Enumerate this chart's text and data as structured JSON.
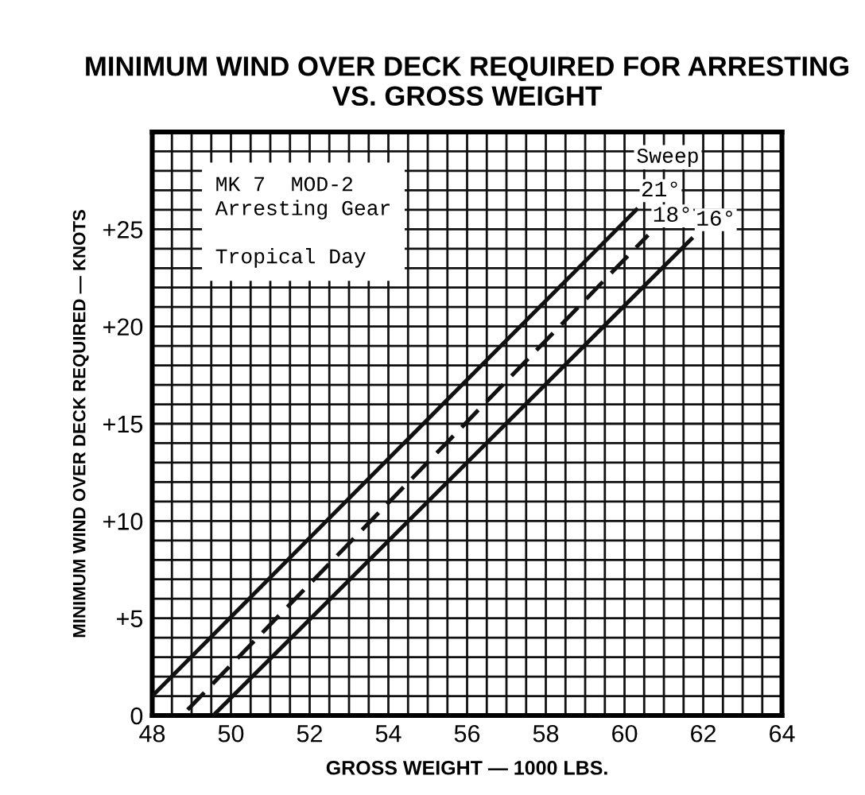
{
  "chart_data": {
    "type": "line",
    "title": "MINIMUM WIND OVER DECK REQUIRED FOR ARRESTING\nVS. GROSS WEIGHT",
    "xlabel": "GROSS WEIGHT — 1000 LBS.",
    "ylabel": "MINIMUM WIND OVER DECK REQUIRED — KNOTS",
    "series": [
      {
        "name": "21°",
        "color": "#111111",
        "line_style": "solid",
        "x": [
          48,
          60.3
        ],
        "values": [
          1,
          26
        ]
      },
      {
        "name": "18°",
        "color": "#111111",
        "line_style": "dashed",
        "x": [
          48.9,
          60.6
        ],
        "values": [
          0.3,
          24.7
        ]
      },
      {
        "name": "16°",
        "color": "#111111",
        "line_style": "solid",
        "x": [
          49.6,
          61.7
        ],
        "values": [
          0.1,
          24.5
        ]
      }
    ],
    "annotations": [
      "MK 7  MOD-2\nArresting Gear\n\nTropical Day",
      {
        "text": "Sweep",
        "x": 61.1,
        "y": 28.7
      }
    ],
    "xlim": [
      48,
      64
    ],
    "ylim": [
      0,
      30
    ],
    "xticks": [
      48,
      {
        "value": 48.5,
        "label": null
      },
      {
        "value": 49,
        "label": null
      },
      {
        "value": 49.5,
        "label": null
      },
      50,
      {
        "value": 50.5,
        "label": null
      },
      {
        "value": 51,
        "label": null
      },
      {
        "value": 51.5,
        "label": null
      },
      52,
      {
        "value": 52.5,
        "label": null
      },
      {
        "value": 53,
        "label": null
      },
      {
        "value": 53.5,
        "label": null
      },
      54,
      {
        "value": 54.5,
        "label": null
      },
      {
        "value": 55,
        "label": null
      },
      {
        "value": 55.5,
        "label": null
      },
      56,
      {
        "value": 56.5,
        "label": null
      },
      {
        "value": 57,
        "label": null
      },
      {
        "value": 57.5,
        "label": null
      },
      58,
      {
        "value": 58.5,
        "label": null
      },
      {
        "value": 59,
        "label": null
      },
      {
        "value": 59.5,
        "label": null
      },
      60,
      {
        "value": 60.5,
        "label": null
      },
      {
        "value": 61,
        "label": null
      },
      {
        "value": 61.5,
        "label": null
      },
      62,
      {
        "value": 62.5,
        "label": null
      },
      {
        "value": 63,
        "label": null
      },
      {
        "value": 63.5,
        "label": null
      },
      64
    ],
    "yticks": [
      0,
      {
        "value": 1,
        "label": null
      },
      {
        "value": 2,
        "label": null
      },
      {
        "value": 3,
        "label": null
      },
      {
        "value": 4,
        "label": null
      },
      {
        "value": 5,
        "label": "+5"
      },
      {
        "value": 6,
        "label": null
      },
      {
        "value": 7,
        "label": null
      },
      {
        "value": 8,
        "label": null
      },
      {
        "value": 9,
        "label": null
      },
      {
        "value": 10,
        "label": "+10"
      },
      {
        "value": 11,
        "label": null
      },
      {
        "value": 12,
        "label": null
      },
      {
        "value": 13,
        "label": null
      },
      {
        "value": 14,
        "label": null
      },
      {
        "value": 15,
        "label": "+15"
      },
      {
        "value": 16,
        "label": null
      },
      {
        "value": 17,
        "label": null
      },
      {
        "value": 18,
        "label": null
      },
      {
        "value": 19,
        "label": null
      },
      {
        "value": 20,
        "label": "+20"
      },
      {
        "value": 21,
        "label": null
      },
      {
        "value": 22,
        "label": null
      },
      {
        "value": 23,
        "label": null
      },
      {
        "value": 24,
        "label": null
      },
      {
        "value": 25,
        "label": "+25"
      },
      {
        "value": 26,
        "label": null
      },
      {
        "value": 27,
        "label": null
      },
      {
        "value": 28,
        "label": null
      },
      {
        "value": 29,
        "label": null
      },
      {
        "value": 30,
        "label": null
      }
    ],
    "grid": true,
    "legend": false
  }
}
